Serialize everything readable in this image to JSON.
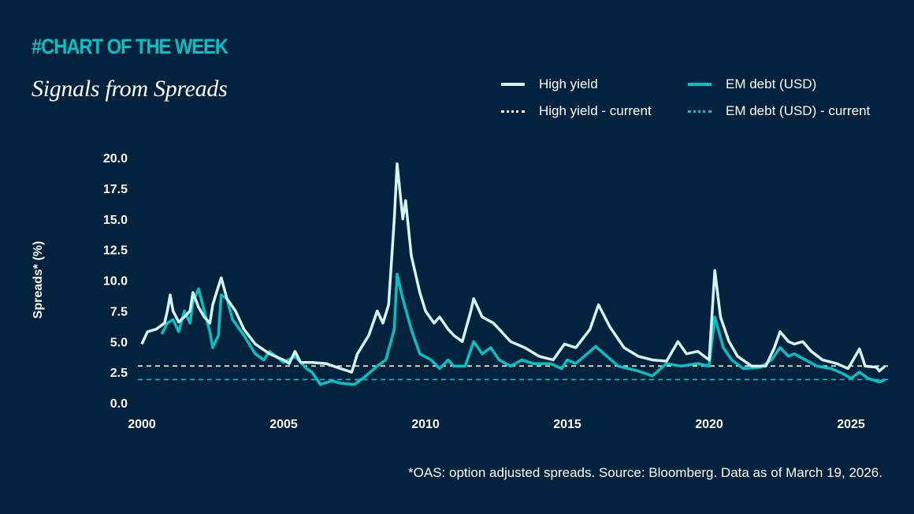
{
  "header": {
    "kicker": "#CHART OF THE WEEK",
    "title": "Signals from Spreads"
  },
  "footnote": "*OAS: option adjusted spreads. Source: Bloomberg. Data as of March 19, 2026.",
  "chart_data": {
    "type": "line",
    "title": "Signals from Spreads",
    "xlabel": "",
    "ylabel": "Spreads* (%)",
    "xlim": [
      2000,
      2026.3
    ],
    "ylim": [
      0,
      20
    ],
    "xticks": [
      "2000",
      "2005",
      "2010",
      "2015",
      "2020",
      "2025"
    ],
    "yticks": [
      "0.0",
      "2.5",
      "5.0",
      "7.5",
      "10.0",
      "12.5",
      "15.0",
      "17.5",
      "20.0"
    ],
    "grid": false,
    "legend_position": "top-right",
    "series": [
      {
        "name": "High yield",
        "color": "#d2f6f4",
        "style": "solid",
        "x": [
          2000.0,
          2000.2,
          2000.5,
          2000.8,
          2000.9,
          2001.0,
          2001.1,
          2001.3,
          2001.5,
          2001.7,
          2001.8,
          2002.0,
          2002.2,
          2002.4,
          2002.5,
          2002.7,
          2002.8,
          2003.0,
          2003.3,
          2003.6,
          2004.0,
          2004.5,
          2005.0,
          2005.2,
          2005.4,
          2005.6,
          2006.0,
          2006.5,
          2007.0,
          2007.4,
          2007.6,
          2008.0,
          2008.3,
          2008.5,
          2008.7,
          2008.9,
          2009.0,
          2009.2,
          2009.3,
          2009.5,
          2009.8,
          2010.0,
          2010.3,
          2010.5,
          2010.8,
          2011.0,
          2011.3,
          2011.6,
          2011.7,
          2012.0,
          2012.4,
          2012.8,
          2013.0,
          2013.5,
          2014.0,
          2014.5,
          2014.9,
          2015.3,
          2015.8,
          2016.1,
          2016.5,
          2017.0,
          2017.5,
          2018.0,
          2018.5,
          2018.9,
          2019.2,
          2019.6,
          2020.0,
          2020.2,
          2020.4,
          2020.7,
          2021.0,
          2021.5,
          2022.0,
          2022.3,
          2022.5,
          2022.8,
          2023.0,
          2023.3,
          2023.6,
          2024.0,
          2024.5,
          2024.9,
          2025.3,
          2025.5,
          2025.9,
          2026.0,
          2026.2
        ],
        "y": [
          4.8,
          5.8,
          6.0,
          6.5,
          7.5,
          8.8,
          7.5,
          6.6,
          7.0,
          7.5,
          9.0,
          7.8,
          7.0,
          6.5,
          8.0,
          9.5,
          10.2,
          8.5,
          7.5,
          6.0,
          4.8,
          4.0,
          3.5,
          3.2,
          4.2,
          3.3,
          3.3,
          3.2,
          2.8,
          2.5,
          4.0,
          5.5,
          7.5,
          6.5,
          8.0,
          15.0,
          19.5,
          15.0,
          16.5,
          12.0,
          9.0,
          7.5,
          6.5,
          7.0,
          6.0,
          5.5,
          5.0,
          7.5,
          8.5,
          7.0,
          6.5,
          5.5,
          5.0,
          4.5,
          3.8,
          3.5,
          4.8,
          4.5,
          6.0,
          8.0,
          6.2,
          4.5,
          3.8,
          3.5,
          3.4,
          5.0,
          4.0,
          4.2,
          3.5,
          10.8,
          7.0,
          5.0,
          3.8,
          3.0,
          3.0,
          4.5,
          5.8,
          5.0,
          4.8,
          5.0,
          4.2,
          3.5,
          3.2,
          2.8,
          4.4,
          3.0,
          2.9,
          2.6,
          3.0
        ]
      },
      {
        "name": "EM debt (USD)",
        "color": "#00c1c4",
        "style": "solid",
        "x": [
          2000.7,
          2000.9,
          2001.1,
          2001.3,
          2001.5,
          2001.7,
          2001.8,
          2002.0,
          2002.2,
          2002.4,
          2002.5,
          2002.7,
          2002.8,
          2003.0,
          2003.2,
          2003.6,
          2004.0,
          2004.3,
          2004.5,
          2005.0,
          2005.4,
          2005.8,
          2006.0,
          2006.3,
          2006.7,
          2007.0,
          2007.5,
          2007.9,
          2008.3,
          2008.6,
          2008.9,
          2009.0,
          2009.2,
          2009.5,
          2009.8,
          2010.2,
          2010.5,
          2010.8,
          2011.0,
          2011.4,
          2011.7,
          2012.0,
          2012.3,
          2012.6,
          2013.0,
          2013.4,
          2013.8,
          2014.4,
          2014.8,
          2015.0,
          2015.3,
          2015.6,
          2016.0,
          2016.4,
          2016.8,
          2017.5,
          2018.0,
          2018.5,
          2019.0,
          2019.6,
          2020.0,
          2020.2,
          2020.5,
          2020.8,
          2021.2,
          2021.8,
          2022.2,
          2022.5,
          2022.8,
          2023.0,
          2023.4,
          2023.8,
          2024.3,
          2024.7,
          2025.0,
          2025.3,
          2025.6,
          2026.0,
          2026.2
        ],
        "y": [
          5.6,
          6.5,
          6.8,
          5.8,
          7.5,
          6.5,
          8.2,
          9.3,
          7.5,
          5.8,
          4.5,
          5.5,
          8.8,
          8.5,
          6.8,
          5.5,
          4.0,
          3.5,
          4.2,
          3.3,
          3.8,
          2.8,
          2.5,
          1.5,
          1.8,
          1.6,
          1.5,
          2.2,
          3.0,
          3.5,
          6.0,
          10.5,
          8.5,
          6.0,
          4.0,
          3.5,
          2.8,
          3.5,
          3.0,
          3.0,
          5.0,
          4.0,
          4.5,
          3.5,
          3.0,
          3.5,
          3.2,
          3.2,
          2.8,
          3.5,
          3.2,
          3.8,
          4.6,
          3.8,
          3.0,
          2.6,
          2.2,
          3.2,
          3.0,
          3.2,
          3.0,
          7.0,
          4.5,
          3.5,
          2.8,
          2.9,
          3.5,
          4.5,
          3.8,
          4.0,
          3.5,
          3.0,
          2.8,
          2.4,
          2.0,
          2.5,
          2.0,
          1.7,
          1.9
        ]
      },
      {
        "name": "High yield - current",
        "color": "#ffffff",
        "style": "dashed",
        "value": 3.0
      },
      {
        "name": "EM debt (USD) - current",
        "color": "#00c1c4",
        "style": "dashed",
        "value": 1.9
      }
    ]
  }
}
